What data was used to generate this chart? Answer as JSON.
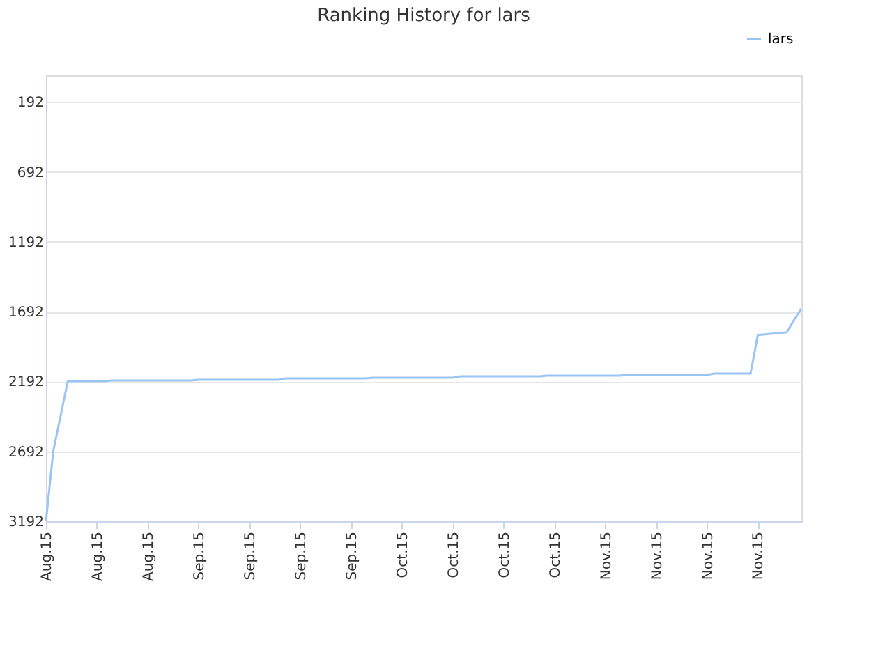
{
  "chart_data": {
    "type": "line",
    "title": "Ranking History for lars",
    "categories": [
      "Aug.15",
      null,
      null,
      null,
      null,
      null,
      null,
      "Aug.15",
      null,
      null,
      null,
      null,
      null,
      null,
      "Aug.15",
      null,
      null,
      null,
      null,
      null,
      null,
      "Sep.15",
      null,
      null,
      null,
      null,
      null,
      null,
      "Sep.15",
      null,
      null,
      null,
      null,
      null,
      null,
      "Sep.15",
      null,
      null,
      null,
      null,
      null,
      null,
      "Sep.15",
      null,
      null,
      null,
      null,
      null,
      null,
      "Oct.15",
      null,
      null,
      null,
      null,
      null,
      null,
      "Oct.15",
      null,
      null,
      null,
      null,
      null,
      null,
      "Oct.15",
      null,
      null,
      null,
      null,
      null,
      null,
      "Oct.15",
      null,
      null,
      null,
      null,
      null,
      null,
      "Nov.15",
      null,
      null,
      null,
      null,
      null,
      null,
      "Nov.15",
      null,
      null,
      null,
      null,
      null,
      null,
      "Nov.15",
      null,
      null,
      null,
      null,
      null,
      null,
      "Nov.15",
      null,
      null,
      null,
      null,
      null,
      null
    ],
    "series": [
      {
        "name": "lars",
        "color": "#99c5f5",
        "values": [
          3190,
          2690,
          2440,
          2190,
          2190,
          2190,
          2190,
          2190,
          2190,
          2185,
          2185,
          2185,
          2185,
          2185,
          2185,
          2185,
          2185,
          2185,
          2185,
          2185,
          2185,
          2180,
          2180,
          2180,
          2180,
          2180,
          2180,
          2180,
          2180,
          2180,
          2180,
          2180,
          2180,
          2170,
          2170,
          2170,
          2170,
          2170,
          2170,
          2170,
          2170,
          2170,
          2170,
          2170,
          2170,
          2165,
          2165,
          2165,
          2165,
          2165,
          2165,
          2165,
          2165,
          2165,
          2165,
          2165,
          2165,
          2155,
          2155,
          2155,
          2155,
          2155,
          2155,
          2155,
          2155,
          2155,
          2155,
          2155,
          2155,
          2150,
          2150,
          2150,
          2150,
          2150,
          2150,
          2150,
          2150,
          2150,
          2150,
          2150,
          2145,
          2145,
          2145,
          2145,
          2145,
          2145,
          2145,
          2145,
          2145,
          2145,
          2145,
          2145,
          2135,
          2135,
          2135,
          2135,
          2135,
          2135,
          1860,
          1855,
          1850,
          1845,
          1840,
          1750,
          1670
        ]
      }
    ],
    "ylim": [
      3192,
      1
    ],
    "yticks": [
      192,
      692,
      1192,
      1692,
      2192,
      2692,
      3192
    ],
    "grid": "y",
    "legend": "top right",
    "marker": "none",
    "line_style": "solid"
  }
}
